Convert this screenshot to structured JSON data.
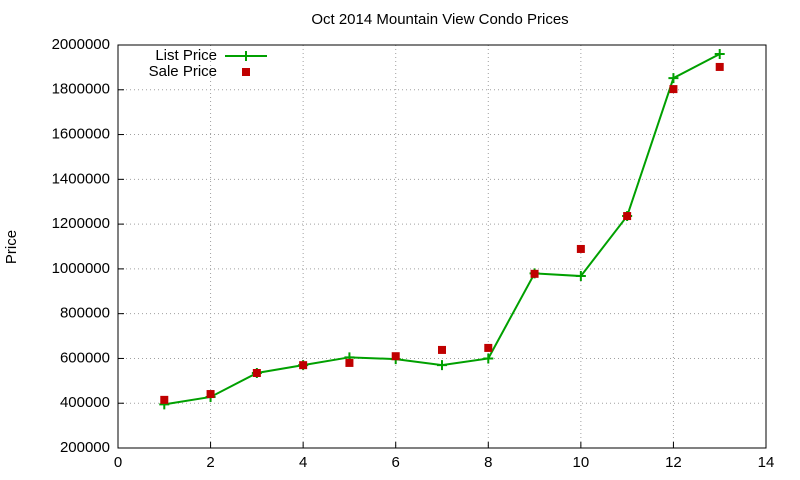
{
  "chart_data": {
    "type": "line",
    "title": "Oct 2014 Mountain View Condo Prices",
    "y_label": "Price",
    "x": [
      1,
      2,
      3,
      4,
      5,
      6,
      7,
      8,
      9,
      10,
      11,
      12,
      13
    ],
    "series": [
      {
        "name": "List Price",
        "color": "#00a000",
        "style": "linespoints",
        "values": [
          395000,
          428000,
          535000,
          570000,
          605000,
          597000,
          570000,
          600000,
          980000,
          968000,
          1236000,
          1852000,
          1960000
        ]
      },
      {
        "name": "Sale Price",
        "color": "#c00000",
        "style": "points",
        "values": [
          415000,
          441000,
          535000,
          570000,
          580000,
          610000,
          638000,
          647000,
          978000,
          1089000,
          1236000,
          1803000,
          1902000
        ]
      }
    ],
    "xlim": [
      0,
      14
    ],
    "xticks": [
      0,
      2,
      4,
      6,
      8,
      10,
      12,
      14
    ],
    "ylim": [
      200000,
      2000000
    ],
    "yticks": [
      200000,
      400000,
      600000,
      800000,
      1000000,
      1200000,
      1400000,
      1600000,
      1800000,
      2000000
    ],
    "grid": true,
    "legend": "top-left"
  }
}
